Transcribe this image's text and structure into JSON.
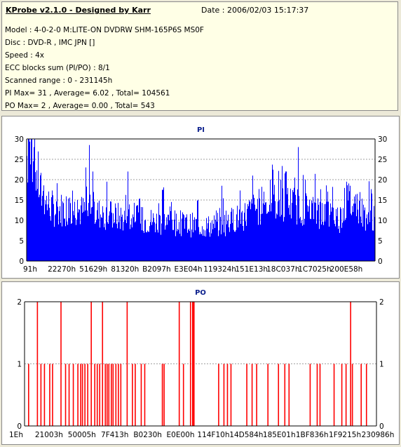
{
  "info": {
    "title": "KProbe v2.1.0 - Designed by Karr",
    "date_label": "Date : 2006/02/03 15:17:37",
    "lines": [
      "Model : 4-0-2-0 M:LITE-ON DVDRW SHM-165P6S MS0F",
      "Disc : DVD-R , IMC JPN []",
      "Speed : 4x",
      "ECC blocks sum (PI/PO) : 8/1",
      "Scanned range : 0 - 231145h",
      "PI Max= 31 , Average= 6.02 , Total= 104561",
      "PO Max= 2 , Average= 0.00 , Total= 543"
    ]
  },
  "colors": {
    "pi": "#0000ff",
    "po": "#ff0000",
    "title": "#0a1e8c",
    "grid": "#a0a0a0"
  },
  "chart_data": [
    {
      "type": "bar",
      "title": "PI",
      "xlabel": "",
      "ylabel": "",
      "ylim": [
        0,
        30
      ],
      "yticks": [
        0,
        5,
        10,
        15,
        20,
        25,
        30
      ],
      "xlim": [
        0,
        231145
      ],
      "xtick_labels": [
        "91h",
        "22270h",
        "51629h",
        "81320h",
        "B2097h",
        "E3E04h",
        "119324h",
        "151E13h",
        "18C037h",
        "1C7025h",
        "200E58h"
      ],
      "grid": true,
      "profile": [
        [
          0,
          26
        ],
        [
          0.01,
          28
        ],
        [
          0.02,
          24
        ],
        [
          0.03,
          21
        ],
        [
          0.04,
          17
        ],
        [
          0.06,
          14
        ],
        [
          0.08,
          12.5
        ],
        [
          0.12,
          13
        ],
        [
          0.17,
          12
        ],
        [
          0.22,
          11.5
        ],
        [
          0.28,
          10.5
        ],
        [
          0.34,
          10
        ],
        [
          0.4,
          9.5
        ],
        [
          0.46,
          9
        ],
        [
          0.52,
          8.5
        ],
        [
          0.56,
          9
        ],
        [
          0.62,
          11
        ],
        [
          0.66,
          13
        ],
        [
          0.7,
          14.5
        ],
        [
          0.74,
          14.5
        ],
        [
          0.78,
          13.5
        ],
        [
          0.84,
          12
        ],
        [
          0.88,
          11
        ],
        [
          0.9,
          10.5
        ],
        [
          0.92,
          15
        ],
        [
          0.94,
          13.5
        ],
        [
          0.96,
          12
        ],
        [
          0.98,
          11
        ],
        [
          1.0,
          10
        ]
      ],
      "peaks": [
        [
          0.005,
          31
        ],
        [
          0.013,
          30
        ],
        [
          0.02,
          28
        ],
        [
          0.17,
          23
        ],
        [
          0.18,
          28.5
        ],
        [
          0.19,
          22
        ],
        [
          0.23,
          19.5
        ],
        [
          0.29,
          22
        ],
        [
          0.39,
          17.5
        ],
        [
          0.56,
          18.5
        ],
        [
          0.65,
          21
        ],
        [
          0.7,
          20
        ],
        [
          0.73,
          20
        ],
        [
          0.745,
          22
        ],
        [
          0.77,
          20.5
        ],
        [
          0.78,
          28
        ],
        [
          0.8,
          20
        ],
        [
          0.92,
          19.5
        ],
        [
          0.93,
          18.5
        ],
        [
          0.95,
          16.5
        ]
      ]
    },
    {
      "type": "bar",
      "title": "PO",
      "xlabel": "",
      "ylabel": "",
      "ylim": [
        0,
        2
      ],
      "yticks": [
        0,
        1,
        2
      ],
      "xlim": [
        0,
        231145
      ],
      "xtick_labels": [
        "1Eh",
        "21003h",
        "50005h",
        "7F413h",
        "B0230h",
        "E0E00h",
        "114F10h",
        "14D584h",
        "185E01h",
        "1BF836h",
        "1F9215h",
        "230986h"
      ],
      "grid": true,
      "bars": [
        [
          0.01,
          1
        ],
        [
          0.035,
          2
        ],
        [
          0.045,
          1
        ],
        [
          0.055,
          1
        ],
        [
          0.07,
          1
        ],
        [
          0.078,
          1
        ],
        [
          0.102,
          2
        ],
        [
          0.115,
          1
        ],
        [
          0.125,
          1
        ],
        [
          0.137,
          1
        ],
        [
          0.15,
          1
        ],
        [
          0.158,
          1
        ],
        [
          0.163,
          1
        ],
        [
          0.17,
          1
        ],
        [
          0.178,
          1
        ],
        [
          0.188,
          2
        ],
        [
          0.198,
          1
        ],
        [
          0.205,
          1
        ],
        [
          0.212,
          1
        ],
        [
          0.22,
          2
        ],
        [
          0.228,
          1
        ],
        [
          0.233,
          1
        ],
        [
          0.238,
          1
        ],
        [
          0.245,
          1
        ],
        [
          0.25,
          1
        ],
        [
          0.258,
          1
        ],
        [
          0.265,
          1
        ],
        [
          0.272,
          1
        ],
        [
          0.29,
          2
        ],
        [
          0.305,
          1
        ],
        [
          0.313,
          1
        ],
        [
          0.33,
          1
        ],
        [
          0.34,
          1
        ],
        [
          0.39,
          1
        ],
        [
          0.395,
          1
        ],
        [
          0.438,
          2
        ],
        [
          0.45,
          1
        ],
        [
          0.47,
          2
        ],
        [
          0.476,
          2
        ],
        [
          0.478,
          2
        ],
        [
          0.48,
          2
        ],
        [
          0.55,
          1
        ],
        [
          0.565,
          1
        ],
        [
          0.575,
          1
        ],
        [
          0.585,
          1
        ],
        [
          0.63,
          1
        ],
        [
          0.645,
          1
        ],
        [
          0.658,
          1
        ],
        [
          0.69,
          1
        ],
        [
          0.72,
          1
        ],
        [
          0.738,
          1
        ],
        [
          0.75,
          1
        ],
        [
          0.81,
          1
        ],
        [
          0.83,
          1
        ],
        [
          0.838,
          1
        ],
        [
          0.878,
          1
        ],
        [
          0.9,
          1
        ],
        [
          0.912,
          1
        ],
        [
          0.925,
          2
        ],
        [
          0.93,
          1
        ],
        [
          0.955,
          1
        ],
        [
          0.97,
          1
        ]
      ]
    }
  ]
}
